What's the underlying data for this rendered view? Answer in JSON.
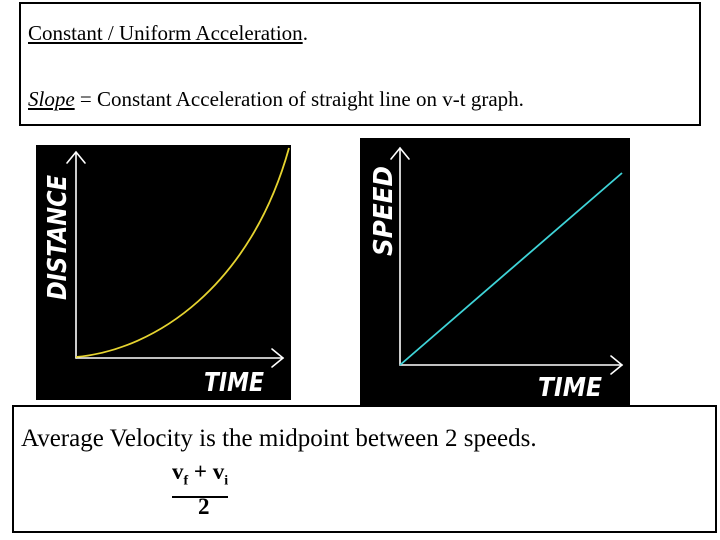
{
  "top_box": {
    "title": "Constant / Uniform Acceleration",
    "title_end": ".",
    "slope_word": "Slope",
    "slope_rest": " = Constant Acceleration  of straight line on v-t graph."
  },
  "graph_distance": {
    "y_label": "DISTANCE",
    "x_label": "TIME",
    "curve_color": "#e6d430",
    "axis_color": "#ffffff",
    "background": "#000000"
  },
  "graph_speed": {
    "y_label": "SPEED",
    "x_label": "TIME",
    "line_color": "#3fd4d8",
    "axis_color": "#ffffff",
    "background": "#000000"
  },
  "bottom_box": {
    "statement": "Average Velocity is the midpoint between 2 speeds.",
    "numerator_v1": "v",
    "numerator_sub1": "f",
    "numerator_plus": " + v",
    "numerator_sub2": "i",
    "denominator": "2"
  }
}
